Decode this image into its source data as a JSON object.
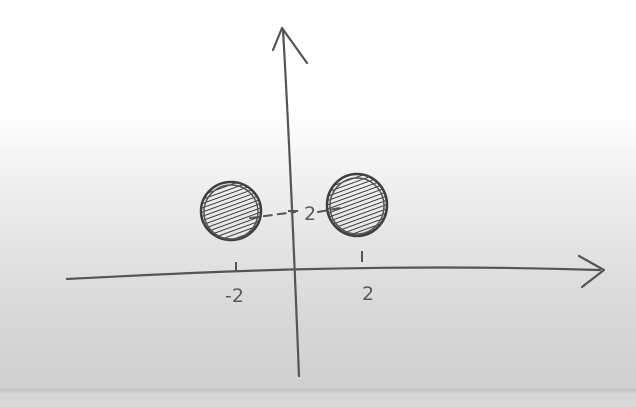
{
  "diagram": {
    "x_tick_labels": [
      "-2",
      "2"
    ],
    "y_tick_label": "2",
    "points": [
      {
        "x": -2,
        "y": 2,
        "filled": true
      },
      {
        "x": 2,
        "y": 2,
        "filled": true
      }
    ],
    "ink_color": "#4a4a4a"
  }
}
